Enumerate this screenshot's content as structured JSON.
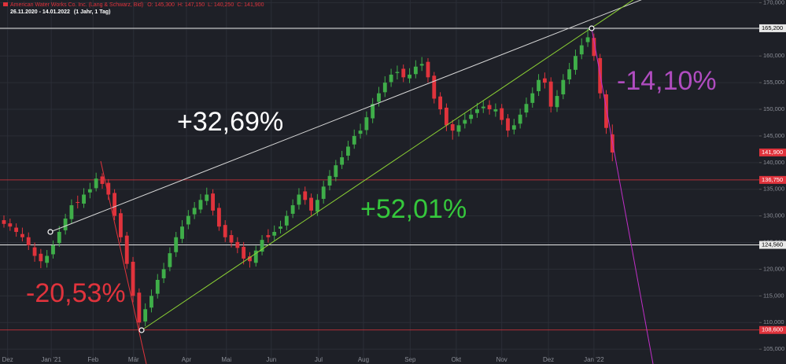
{
  "chart_data": {
    "type": "candlestick",
    "title": "American Water Works Co. Inc. (Lang & Schwarz, Bid)",
    "header_ohlc": [
      "O: 145,300",
      "H: 147,150",
      "L: 140,250",
      "C: 141,900"
    ],
    "subtitle": "26.11.2020 - 14.01.2022",
    "period": "(1 Jahr, 1 Tag)",
    "open": [
      129.2,
      128.6,
      127.8,
      126.6,
      126.0,
      124.1,
      122.9,
      121.2,
      122.8,
      124.9,
      127.3,
      129.4,
      132.6,
      132.3,
      134.4,
      135.2,
      137.4,
      136.2,
      134.3,
      130.5,
      126.3,
      121.4,
      115.6,
      110.2,
      112.8,
      115.4,
      118.3,
      120.4,
      123.2,
      125.7,
      128.4,
      130.3,
      131.2,
      132.8,
      134.2,
      131.5,
      128.3,
      126.4,
      125.1,
      124.2,
      122.4,
      121.2,
      123.3,
      126.4,
      126.3,
      127.6,
      128.2,
      130.4,
      132.1,
      134.6,
      133.4,
      130.8,
      133.2,
      135.7,
      137.3,
      139.6,
      141.3,
      143.4,
      145.4,
      146.1,
      148.3,
      151.4,
      153.2,
      155.1,
      156.8,
      157.6,
      155.8,
      156.6,
      158.2,
      158.9,
      156.3,
      152.4,
      150.3,
      147.2,
      145.8,
      147.3,
      148.2,
      149.3,
      150.2,
      150.8,
      149.6,
      150.2,
      148.3,
      146.2,
      147.3,
      149.4,
      151.2,
      153.4,
      155.8,
      155.2,
      150.4,
      152.8,
      155.6,
      157.4,
      160.3,
      162.6,
      163.4,
      159.6,
      152.8,
      145.3
    ],
    "high": [
      130.1,
      129.5,
      128.6,
      127.8,
      126.9,
      125.0,
      123.8,
      123.6,
      125.4,
      128.1,
      130.4,
      133.1,
      133.8,
      135.2,
      136.2,
      138.1,
      138.0,
      136.9,
      135.0,
      131.3,
      127.0,
      122.3,
      116.4,
      113.6,
      116.2,
      119.1,
      121.2,
      124.1,
      127.0,
      129.2,
      131.1,
      132.6,
      134.1,
      135.3,
      135.0,
      132.4,
      129.2,
      127.3,
      126.0,
      125.1,
      123.2,
      124.4,
      126.4,
      127.5,
      128.2,
      129.1,
      131.0,
      133.1,
      135.2,
      135.5,
      134.2,
      134.1,
      136.6,
      138.6,
      140.5,
      142.2,
      144.1,
      146.2,
      147.3,
      149.6,
      152.1,
      154.2,
      156.2,
      157.6,
      158.2,
      158.4,
      157.7,
      159.2,
      159.8,
      159.6,
      157.0,
      153.2,
      151.1,
      148.0,
      148.1,
      149.2,
      150.1,
      151.2,
      151.6,
      151.7,
      151.1,
      151.0,
      149.1,
      148.2,
      150.1,
      152.2,
      154.1,
      156.6,
      156.9,
      156.0,
      153.6,
      156.6,
      158.7,
      161.2,
      163.3,
      165.2,
      164.2,
      160.4,
      153.6,
      147.15
    ],
    "low": [
      127.8,
      127.2,
      126.1,
      125.2,
      123.6,
      121.4,
      120.2,
      120.3,
      122.0,
      124.2,
      126.5,
      128.6,
      131.4,
      131.5,
      133.3,
      134.6,
      135.1,
      133.0,
      129.2,
      125.0,
      120.1,
      113.8,
      108.6,
      109.3,
      111.9,
      114.5,
      117.4,
      119.6,
      122.3,
      124.9,
      127.5,
      129.4,
      130.5,
      132.0,
      130.1,
      127.2,
      125.1,
      124.1,
      123.0,
      120.9,
      120.3,
      120.5,
      122.6,
      125.0,
      125.4,
      126.7,
      127.3,
      129.6,
      131.2,
      132.1,
      130.0,
      130.0,
      132.3,
      134.8,
      136.5,
      138.8,
      140.4,
      142.6,
      144.5,
      145.2,
      147.4,
      150.5,
      152.3,
      154.2,
      155.6,
      155.1,
      154.9,
      155.8,
      157.2,
      155.0,
      151.1,
      149.0,
      145.9,
      144.3,
      144.9,
      146.4,
      147.3,
      148.4,
      149.3,
      149.0,
      148.6,
      147.1,
      144.8,
      145.3,
      146.4,
      148.5,
      150.3,
      152.5,
      153.9,
      149.4,
      149.5,
      151.9,
      154.7,
      156.5,
      159.4,
      161.7,
      159.1,
      152.0,
      145.4,
      140.25
    ],
    "close": [
      128.5,
      128,
      127,
      126,
      124.5,
      122.5,
      121.5,
      122.5,
      124.5,
      127,
      129.5,
      132,
      132.5,
      134,
      135,
      137,
      136,
      134,
      130,
      126,
      121,
      115,
      110,
      112.5,
      115,
      118,
      120,
      123,
      126,
      128,
      130,
      131.5,
      133,
      134,
      131,
      128,
      126,
      125,
      124,
      122,
      121.5,
      123.5,
      125.5,
      126,
      127,
      128,
      130,
      132,
      134,
      133,
      131,
      133,
      135.5,
      137.5,
      139.5,
      141,
      143,
      145,
      146,
      148.5,
      151,
      153,
      155,
      156.5,
      157,
      156,
      156.5,
      158,
      158.5,
      156,
      152,
      150,
      147,
      146,
      147,
      148,
      149,
      150,
      150.5,
      150,
      150,
      148,
      146,
      147,
      149,
      151,
      153,
      155.5,
      155,
      150.5,
      152.5,
      155.5,
      157.5,
      160,
      162,
      163.5,
      160,
      153,
      146.5,
      141.9
    ],
    "up_color": "#3fae49",
    "down_color": "#e0333c",
    "ylim": [
      103.4,
      170.5
    ],
    "yticks": [
      {
        "value": 105,
        "label": "105,000"
      },
      {
        "value": 110,
        "label": "110,000"
      },
      {
        "value": 115,
        "label": "115,000"
      },
      {
        "value": 120,
        "label": "120,000"
      },
      {
        "value": 125,
        "label": "125,000"
      },
      {
        "value": 130,
        "label": "130,000"
      },
      {
        "value": 135,
        "label": "135,000"
      },
      {
        "value": 140,
        "label": "140,000"
      },
      {
        "value": 145,
        "label": "145,000"
      },
      {
        "value": 150,
        "label": "150,000"
      },
      {
        "value": 155,
        "label": "155,000"
      },
      {
        "value": 160,
        "label": "160,000"
      },
      {
        "value": 165,
        "label": "165,000"
      },
      {
        "value": 170,
        "label": "170,000"
      }
    ],
    "xlim": [
      -0.64,
      122.9
    ],
    "xticks": [
      {
        "value": 0.6,
        "label": "Dez"
      },
      {
        "value": 7.7,
        "label": "Jan '21"
      },
      {
        "value": 14.5,
        "label": "Feb"
      },
      {
        "value": 21.1,
        "label": "Mär"
      },
      {
        "value": 29.7,
        "label": "Apr"
      },
      {
        "value": 36.2,
        "label": "Mai"
      },
      {
        "value": 43.5,
        "label": "Jun"
      },
      {
        "value": 51.2,
        "label": "Jul"
      },
      {
        "value": 58.5,
        "label": "Aug"
      },
      {
        "value": 66.1,
        "label": "Sep"
      },
      {
        "value": 73.6,
        "label": "Okt"
      },
      {
        "value": 81.0,
        "label": "Nov"
      },
      {
        "value": 88.6,
        "label": "Dez"
      },
      {
        "value": 96.0,
        "label": "Jan '22"
      }
    ],
    "grid": true,
    "levels": [
      {
        "value": 165.2,
        "label": "165,200",
        "color": "#e8e8e8"
      },
      {
        "value": 141.9,
        "label": "141,900",
        "color": "#e0333c"
      },
      {
        "value": 136.75,
        "label": "136,750",
        "color": "#e0333c"
      },
      {
        "value": 124.56,
        "label": "124,560",
        "color": "#e8e8e8"
      },
      {
        "value": 108.6,
        "label": "108,600",
        "color": "#e0333c"
      }
    ],
    "annotations": [
      {
        "text": "+32,69%",
        "color": "#ffffff"
      },
      {
        "text": "+52,01%",
        "color": "#35c83c"
      },
      {
        "text": "-20,53%",
        "color": "#e0333c"
      },
      {
        "text": "-14,10%",
        "color": "#b04cc0"
      }
    ]
  }
}
